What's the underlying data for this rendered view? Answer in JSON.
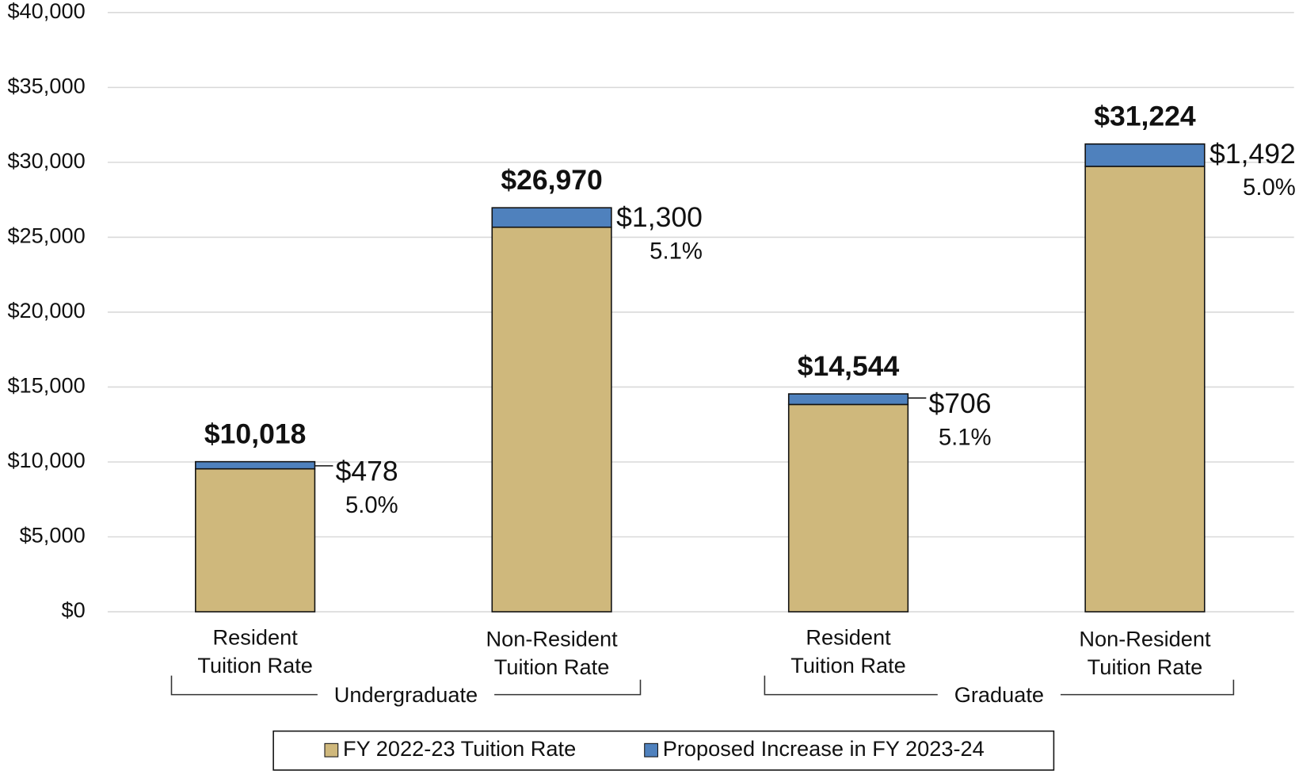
{
  "chart_data": {
    "type": "bar",
    "stacked": true,
    "categories": [
      "Resident\nTuition Rate",
      "Non-Resident\nTuition Rate",
      "Resident\nTuition Rate",
      "Non-Resident\nTuition Rate"
    ],
    "group_labels": [
      "Undergraduate",
      "Graduate"
    ],
    "series": [
      {
        "name": "FY 2022-23 Tuition Rate",
        "color": "#cfb87c",
        "values": [
          9540,
          25670,
          13838,
          29732
        ]
      },
      {
        "name": "Proposed Increase in FY 2023-24",
        "color": "#4f81bd",
        "values": [
          478,
          1300,
          706,
          1492
        ],
        "value_labels": [
          "$478",
          "$1,300",
          "$706",
          "$1,492"
        ],
        "percent_labels": [
          "5.0%",
          "5.1%",
          "5.1%",
          "5.0%"
        ]
      }
    ],
    "total_labels": [
      "$10,018",
      "$26,970",
      "$14,544",
      "$31,224"
    ],
    "ylim": [
      0,
      40000
    ],
    "yticks": [
      {
        "value": 0,
        "label": "$0"
      },
      {
        "value": 5000,
        "label": "$5,000"
      },
      {
        "value": 10000,
        "label": "$10,000"
      },
      {
        "value": 15000,
        "label": "$15,000"
      },
      {
        "value": 20000,
        "label": "$20,000"
      },
      {
        "value": 25000,
        "label": "$25,000"
      },
      {
        "value": 30000,
        "label": "$30,000"
      },
      {
        "value": 35000,
        "label": "$35,000"
      },
      {
        "value": 40000,
        "label": "$40,000"
      }
    ],
    "grid": true
  }
}
